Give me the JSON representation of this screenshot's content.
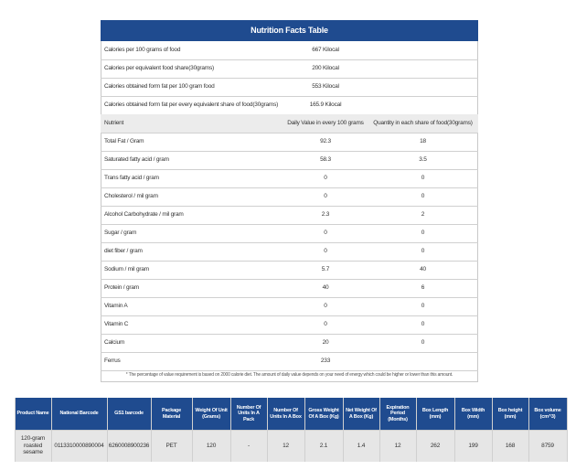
{
  "nutrition": {
    "title": "Nutrition Facts Table",
    "calories": [
      [
        "Calories per 100 grams of food",
        "667 Kilocal"
      ],
      [
        "Calories per equivalent food share(30grams)",
        "200 Kilocal"
      ],
      [
        "Calories obtained form fat per 100 gram food",
        "553 Kilocal"
      ],
      [
        "Calories obtained form fat per every equivalent share of food(30grams)",
        "165.9 Kilocal"
      ]
    ],
    "header": [
      "Nutrient",
      "Daily Value in every 100 grams",
      "Quantity in each share of food(30grams)"
    ],
    "rows": [
      [
        "Total Fat / Gram",
        "92.3",
        "18"
      ],
      [
        "Saturated fatty acid / gram",
        "58.3",
        "3.5"
      ],
      [
        "Trans fatty acid / gram",
        "0",
        "0"
      ],
      [
        "Cholesterol / mil gram",
        "0",
        "0"
      ],
      [
        "Alcohol Carbohydrate / mil gram",
        "2.3",
        "2"
      ],
      [
        "Sugar / gram",
        "0",
        "0"
      ],
      [
        "diet fiber / gram",
        "0",
        "0"
      ],
      [
        "Sodium / mil gram",
        "5.7",
        "40"
      ],
      [
        "Protein / gram",
        "40",
        "6"
      ],
      [
        "Vitamin A",
        "0",
        "0"
      ],
      [
        "Vitamin C",
        "0",
        "0"
      ],
      [
        "Calcium",
        "20",
        "0"
      ],
      [
        "Ferrus",
        "233",
        ""
      ]
    ],
    "footnote": "* The percentage of value requirement is based on 2000 calorie diet. The amount of daily value depends on your need of energy which could be higher or lower than this amount."
  },
  "product": {
    "header": [
      "Product Name",
      "National Barcode",
      "GS1 barcode",
      "Package Material",
      "Weight Of Unit (Grams)",
      "Number Of Units In A Pack",
      "Number Of Units In A Box",
      "Gross Weight Of A Box (Kg)",
      "Net Weight Of A Box (Kg)",
      "Expiration Period (Months)",
      "Box Length (mm)",
      "Box Width (mm)",
      "Box height (mm)",
      "Box volume (cm^3)"
    ],
    "row": [
      "120-gram roasted sesame",
      "0113310000890004",
      "6260008900236",
      "PET",
      "120",
      "-",
      "12",
      "2.1",
      "1.4",
      "12",
      "262",
      "199",
      "168",
      "8759"
    ]
  }
}
